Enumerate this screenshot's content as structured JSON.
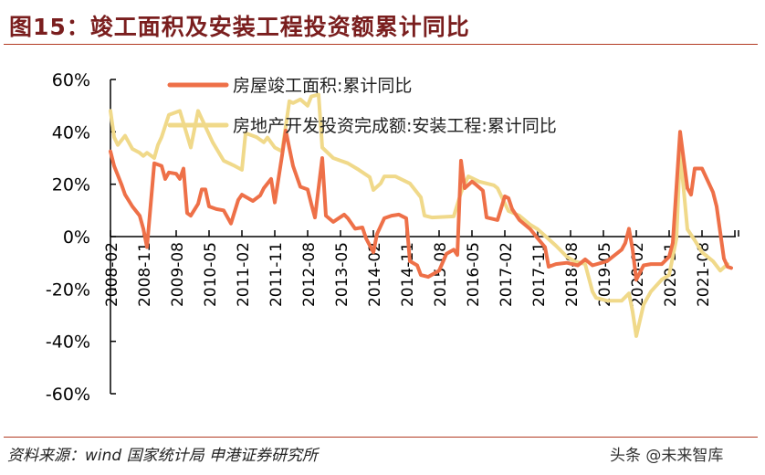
{
  "header": {
    "title": "图15：竣工面积及安装工程投资额累计同比"
  },
  "footer": {
    "source": "资料来源：wind 国家统计局 申港证券研究所",
    "watermark": "头条 @未来智库"
  },
  "chart_data": {
    "type": "line",
    "title": "",
    "xlabel": "",
    "ylabel": "",
    "ylim": [
      -60,
      60
    ],
    "yticks": [
      "60%",
      "40%",
      "20%",
      "0%",
      "-20%",
      "-40%",
      "-60%"
    ],
    "ytick_values": [
      60,
      40,
      20,
      0,
      -20,
      -40,
      -60
    ],
    "xticks": [
      "2008-02",
      "2008-11",
      "2009-08",
      "2010-05",
      "2011-02",
      "2011-11",
      "2012-08",
      "2013-05",
      "2014-02",
      "2014-11",
      "2015-08",
      "2016-05",
      "2017-02",
      "2017-11",
      "2018-08",
      "2019-05",
      "2020-02",
      "2020-11",
      "2021-08"
    ],
    "grid": false,
    "legend": "top",
    "series": [
      {
        "name": "房屋竣工面积:累计同比",
        "color": "#ee7048",
        "points": [
          [
            "2008-02",
            32.5
          ],
          [
            "2008-03",
            27
          ],
          [
            "2008-05",
            20
          ],
          [
            "2008-06",
            16
          ],
          [
            "2008-08",
            11.5
          ],
          [
            "2008-10",
            8
          ],
          [
            "2008-11",
            3
          ],
          [
            "2008-12",
            -4
          ],
          [
            "2009-02",
            28
          ],
          [
            "2009-04",
            27
          ],
          [
            "2009-05",
            22
          ],
          [
            "2009-06",
            24.5
          ],
          [
            "2009-08",
            24
          ],
          [
            "2009-09",
            22
          ],
          [
            "2009-10",
            26
          ],
          [
            "2009-11",
            9
          ],
          [
            "2009-12",
            8
          ],
          [
            "2010-02",
            12.5
          ],
          [
            "2010-03",
            18
          ],
          [
            "2010-04",
            18
          ],
          [
            "2010-05",
            11.5
          ],
          [
            "2010-07",
            10.5
          ],
          [
            "2010-09",
            10
          ],
          [
            "2010-11",
            5
          ],
          [
            "2011-01",
            14
          ],
          [
            "2011-02",
            16
          ],
          [
            "2011-05",
            13.6
          ],
          [
            "2011-07",
            15.7
          ],
          [
            "2011-08",
            18.5
          ],
          [
            "2011-10",
            22
          ],
          [
            "2011-11",
            13
          ],
          [
            "2012-01",
            31
          ],
          [
            "2012-02",
            40.5
          ],
          [
            "2012-04",
            27
          ],
          [
            "2012-06",
            19
          ],
          [
            "2012-08",
            18
          ],
          [
            "2012-09",
            12.5
          ],
          [
            "2012-10",
            7.3
          ],
          [
            "2012-12",
            30
          ],
          [
            "2013-01",
            8
          ],
          [
            "2013-03",
            5.6
          ],
          [
            "2013-06",
            8.4
          ],
          [
            "2013-07",
            7
          ],
          [
            "2013-09",
            3
          ],
          [
            "2013-11",
            3.5
          ],
          [
            "2013-12",
            -0.7
          ],
          [
            "2014-02",
            -6
          ],
          [
            "2014-03",
            1
          ],
          [
            "2014-05",
            7
          ],
          [
            "2014-07",
            8
          ],
          [
            "2014-09",
            8.4
          ],
          [
            "2014-11",
            7
          ],
          [
            "2014-12",
            -9.4
          ],
          [
            "2015-02",
            -11
          ],
          [
            "2015-03",
            -14.7
          ],
          [
            "2015-05",
            -15.4
          ],
          [
            "2015-08",
            -13
          ],
          [
            "2015-10",
            -6.6
          ],
          [
            "2015-12",
            -5
          ],
          [
            "2016-01",
            -7
          ],
          [
            "2016-02",
            29
          ],
          [
            "2016-03",
            18.5
          ],
          [
            "2016-05",
            21
          ],
          [
            "2016-06",
            20
          ],
          [
            "2016-08",
            17.5
          ],
          [
            "2016-09",
            7.3
          ],
          [
            "2016-12",
            6.3
          ],
          [
            "2017-02",
            15.4
          ],
          [
            "2017-03",
            14.7
          ],
          [
            "2017-04",
            10.5
          ],
          [
            "2017-06",
            6.3
          ],
          [
            "2017-09",
            2.8
          ],
          [
            "2017-11",
            -0.7
          ],
          [
            "2018-01",
            -4
          ],
          [
            "2018-02",
            -11.5
          ],
          [
            "2018-04",
            -10.5
          ],
          [
            "2018-07",
            -10
          ],
          [
            "2018-10",
            -11
          ],
          [
            "2018-12",
            -8.7
          ],
          [
            "2019-02",
            -11
          ],
          [
            "2019-06",
            -9.4
          ],
          [
            "2019-10",
            -5
          ],
          [
            "2019-11",
            -2.4
          ],
          [
            "2019-12",
            3
          ],
          [
            "2020-01",
            -5
          ],
          [
            "2020-02",
            -16.5
          ],
          [
            "2020-04",
            -11
          ],
          [
            "2020-06",
            -10.5
          ],
          [
            "2020-09",
            -10.5
          ],
          [
            "2020-11",
            -7.7
          ],
          [
            "2020-12",
            -2.4
          ],
          [
            "2021-02",
            40
          ],
          [
            "2021-04",
            18.5
          ],
          [
            "2021-05",
            16
          ],
          [
            "2021-06",
            26
          ],
          [
            "2021-08",
            26
          ],
          [
            "2021-10",
            20
          ],
          [
            "2021-11",
            17
          ],
          [
            "2021-12",
            11.5
          ],
          [
            "2022-02",
            -8.4
          ],
          [
            "2022-03",
            -11.5
          ],
          [
            "2022-04",
            -12
          ]
        ]
      },
      {
        "name": "房地产开发投资完成额:安装工程:累计同比",
        "color": "#f0d98a",
        "points": [
          [
            "2008-02",
            48
          ],
          [
            "2008-03",
            38
          ],
          [
            "2008-04",
            35
          ],
          [
            "2008-06",
            38.5
          ],
          [
            "2008-07",
            36
          ],
          [
            "2008-08",
            33.5
          ],
          [
            "2008-10",
            32
          ],
          [
            "2008-11",
            30.8
          ],
          [
            "2008-12",
            32
          ],
          [
            "2009-02",
            30
          ],
          [
            "2009-03",
            35
          ],
          [
            "2009-04",
            38
          ],
          [
            "2009-06",
            46.5
          ],
          [
            "2009-09",
            48
          ],
          [
            "2009-12",
            34
          ],
          [
            "2010-02",
            48
          ],
          [
            "2010-06",
            36
          ],
          [
            "2010-09",
            29
          ],
          [
            "2010-12",
            27
          ],
          [
            "2011-02",
            25.5
          ],
          [
            "2011-03",
            39.5
          ],
          [
            "2011-06",
            38
          ],
          [
            "2011-08",
            36
          ],
          [
            "2011-09",
            37.8
          ],
          [
            "2011-11",
            34
          ],
          [
            "2012-01",
            32.5
          ],
          [
            "2012-03",
            51.7
          ],
          [
            "2012-04",
            51
          ],
          [
            "2012-06",
            52.4
          ],
          [
            "2012-08",
            50
          ],
          [
            "2012-09",
            53.5
          ],
          [
            "2012-11",
            54.2
          ],
          [
            "2012-12",
            34
          ],
          [
            "2013-03",
            30
          ],
          [
            "2013-05",
            29
          ],
          [
            "2013-07",
            28
          ],
          [
            "2013-10",
            25.5
          ],
          [
            "2014-01",
            22.7
          ],
          [
            "2014-02",
            17.8
          ],
          [
            "2014-04",
            20.3
          ],
          [
            "2014-05",
            23
          ],
          [
            "2014-08",
            23
          ],
          [
            "2014-12",
            20.3
          ],
          [
            "2015-03",
            15
          ],
          [
            "2015-04",
            8
          ],
          [
            "2015-06",
            7.3
          ],
          [
            "2015-12",
            7.7
          ],
          [
            "2016-02",
            16.8
          ],
          [
            "2016-04",
            23
          ],
          [
            "2016-07",
            21
          ],
          [
            "2016-11",
            19.6
          ],
          [
            "2016-12",
            18.5
          ],
          [
            "2017-03",
            9.8
          ],
          [
            "2017-06",
            8
          ],
          [
            "2017-09",
            4.5
          ],
          [
            "2017-11",
            2.8
          ],
          [
            "2018-01",
            0.3
          ],
          [
            "2018-04",
            -3.5
          ],
          [
            "2018-07",
            -7.7
          ],
          [
            "2018-09",
            -9.4
          ],
          [
            "2018-12",
            -10.5
          ],
          [
            "2019-02",
            -21
          ],
          [
            "2019-03",
            -23.4
          ],
          [
            "2019-06",
            -24.5
          ],
          [
            "2019-10",
            -24.5
          ],
          [
            "2019-12",
            -21.7
          ],
          [
            "2020-01",
            -28.7
          ],
          [
            "2020-02",
            -38
          ],
          [
            "2020-04",
            -26
          ],
          [
            "2020-06",
            -21
          ],
          [
            "2020-09",
            -16.4
          ],
          [
            "2020-11",
            -14.7
          ],
          [
            "2021-01",
            -0.7
          ],
          [
            "2021-02",
            32.5
          ],
          [
            "2021-04",
            2.8
          ],
          [
            "2021-06",
            -1.4
          ],
          [
            "2021-08",
            -6
          ],
          [
            "2021-11",
            -9.4
          ],
          [
            "2022-01",
            -13
          ],
          [
            "2022-03",
            -10.5
          ]
        ]
      }
    ]
  }
}
